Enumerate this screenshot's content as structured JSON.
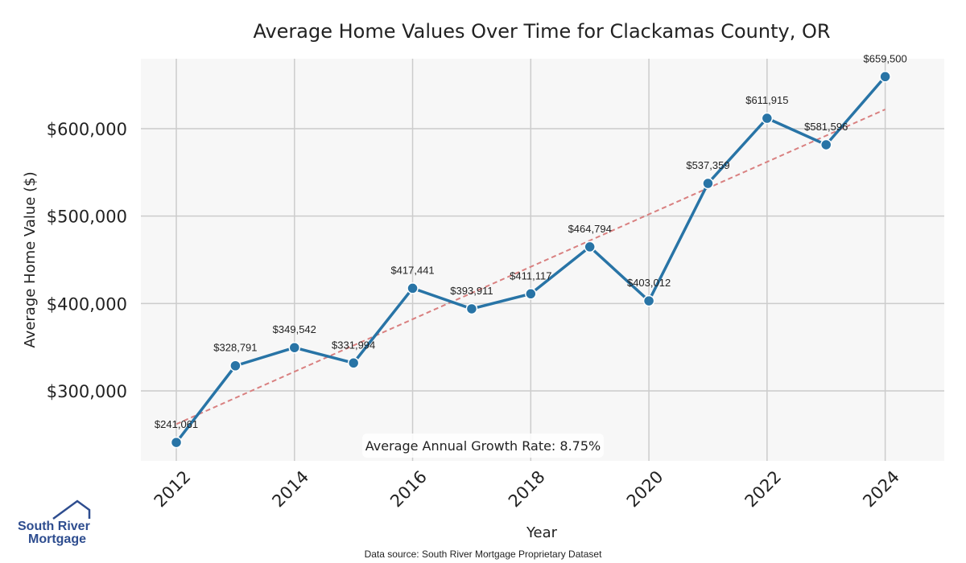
{
  "chart_data": {
    "type": "line",
    "title": "Average Home Values Over Time for Clackamas County, OR",
    "xlabel": "Year",
    "ylabel": "Average Home Value ($)",
    "x": [
      2012,
      2013,
      2014,
      2015,
      2016,
      2017,
      2018,
      2019,
      2020,
      2021,
      2022,
      2023,
      2024
    ],
    "values": [
      241061,
      328791,
      349542,
      331994,
      417441,
      393911,
      411117,
      464794,
      403012,
      537359,
      611915,
      581596,
      659500
    ],
    "data_labels": [
      "$241,061",
      "$328,791",
      "$349,542",
      "$331,994",
      "$417,441",
      "$393,911",
      "$411,117",
      "$464,794",
      "$403,012",
      "$537,359",
      "$611,915",
      "$581,596",
      "$659,500"
    ],
    "xticks": [
      "2012",
      "2014",
      "2016",
      "2018",
      "2020",
      "2022",
      "2024"
    ],
    "yticks": [
      {
        "value": 300000,
        "label": "$300,000"
      },
      {
        "value": 400000,
        "label": "$400,000"
      },
      {
        "value": 500000,
        "label": "$500,000"
      },
      {
        "value": 600000,
        "label": "$600,000"
      }
    ],
    "xlim": [
      2011.4,
      2025.0
    ],
    "ylim": [
      220000,
      680000
    ],
    "trendline": {
      "style": "dashed",
      "color": "#d98080",
      "start": [
        2012,
        262000
      ],
      "end": [
        2024,
        622000
      ]
    },
    "annotation": "Average Annual Growth Rate: 8.75%",
    "series_color": "#2874a6",
    "grid": true
  },
  "source_note": "Data source: South River Mortgage Proprietary Dataset",
  "logo": {
    "line1": "South River",
    "line2": "Mortgage"
  }
}
